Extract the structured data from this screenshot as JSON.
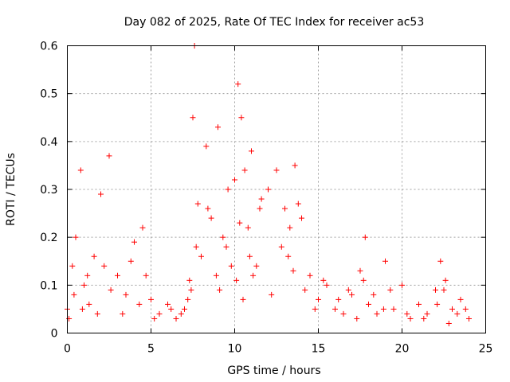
{
  "chart_data": {
    "type": "scatter",
    "title": "Day 082 of 2025, Rate Of TEC Index for receiver ac53",
    "xlabel": "GPS time / hours",
    "ylabel": "ROTI / TECUs",
    "xlim": [
      0,
      25
    ],
    "ylim": [
      0,
      0.6
    ],
    "x_ticks": [
      0,
      5,
      10,
      15,
      20,
      25
    ],
    "x_tick_labels": [
      "0",
      "5",
      "10",
      "15",
      "20",
      "25"
    ],
    "y_ticks": [
      0,
      0.1,
      0.2,
      0.3,
      0.4,
      0.5,
      0.6
    ],
    "y_tick_labels": [
      "0",
      "0.1",
      "0.2",
      "0.3",
      "0.4",
      "0.5",
      "0.6"
    ],
    "grid": true,
    "legend": "none",
    "marker": "plus",
    "color": "#ff0000",
    "series": [
      {
        "x": [
          0.0,
          0.3,
          0.5,
          0.8,
          1.0,
          1.3,
          1.6,
          2.0,
          2.5,
          3.0,
          3.5,
          4.0,
          4.5,
          5.0,
          5.5,
          6.0,
          6.5,
          7.0,
          7.3,
          7.5,
          7.6,
          7.8,
          8.0,
          8.3,
          8.6,
          9.0,
          9.3,
          9.6,
          10.0,
          10.2,
          10.4,
          10.6,
          10.8,
          11.0,
          11.3,
          11.6,
          12.0,
          12.5,
          13.0,
          13.3,
          13.6,
          14.0,
          14.5,
          15.0,
          15.5,
          16.0,
          16.5,
          17.0,
          17.5,
          17.8,
          18.0,
          18.5,
          19.0,
          19.5,
          20.0,
          20.5,
          21.0,
          21.5,
          22.0,
          22.3,
          22.6,
          23.0,
          23.5,
          24.0,
          0.1,
          0.4,
          0.9,
          1.2,
          1.8,
          2.2,
          2.6,
          3.3,
          3.8,
          4.3,
          4.7,
          5.2,
          6.2,
          6.8,
          7.2,
          7.4,
          7.7,
          8.4,
          8.9,
          9.1,
          9.5,
          9.8,
          10.1,
          10.3,
          10.5,
          10.9,
          11.1,
          11.5,
          12.2,
          12.8,
          13.2,
          13.5,
          13.8,
          14.2,
          14.8,
          15.3,
          16.2,
          16.8,
          17.3,
          17.7,
          18.3,
          18.9,
          19.3,
          20.3,
          21.3,
          22.1,
          22.5,
          22.8,
          23.3,
          23.8
        ],
        "y": [
          0.05,
          0.14,
          0.2,
          0.34,
          0.1,
          0.06,
          0.16,
          0.29,
          0.37,
          0.12,
          0.08,
          0.19,
          0.22,
          0.07,
          0.04,
          0.06,
          0.03,
          0.05,
          0.11,
          0.45,
          0.6,
          0.27,
          0.16,
          0.39,
          0.24,
          0.43,
          0.2,
          0.3,
          0.32,
          0.52,
          0.45,
          0.34,
          0.22,
          0.38,
          0.14,
          0.28,
          0.3,
          0.34,
          0.26,
          0.22,
          0.35,
          0.24,
          0.12,
          0.07,
          0.1,
          0.05,
          0.04,
          0.08,
          0.13,
          0.2,
          0.06,
          0.04,
          0.15,
          0.05,
          0.1,
          0.03,
          0.06,
          0.04,
          0.09,
          0.15,
          0.11,
          0.05,
          0.07,
          0.03,
          0.03,
          0.08,
          0.05,
          0.12,
          0.04,
          0.14,
          0.09,
          0.04,
          0.15,
          0.06,
          0.12,
          0.03,
          0.05,
          0.04,
          0.07,
          0.09,
          0.18,
          0.26,
          0.12,
          0.09,
          0.18,
          0.14,
          0.11,
          0.23,
          0.07,
          0.16,
          0.12,
          0.26,
          0.08,
          0.18,
          0.16,
          0.13,
          0.27,
          0.09,
          0.05,
          0.11,
          0.07,
          0.09,
          0.03,
          0.11,
          0.08,
          0.05,
          0.09,
          0.04,
          0.03,
          0.06,
          0.09,
          0.02,
          0.04,
          0.05
        ]
      }
    ]
  }
}
